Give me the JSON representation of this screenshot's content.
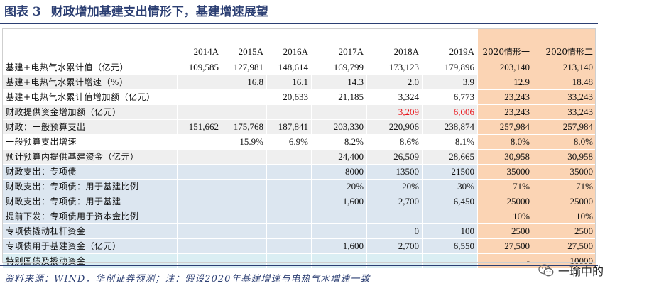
{
  "title": {
    "fig_label": "图表  3",
    "text": "财政增加基建支出情形下，基建增速展望"
  },
  "table": {
    "headers": [
      "",
      "2014A",
      "2015A",
      "2016A",
      "2017A",
      "2018A",
      "2019A",
      "2020情形一",
      "2020情形二"
    ],
    "rows": [
      {
        "label": "基建+电热气水累计值（亿元）",
        "cells": [
          "109,585",
          "127,981",
          "148,614",
          "169,799",
          "173,123",
          "179,896",
          "203,140",
          "213,140"
        ]
      },
      {
        "label": "基建+电热气水累计增速（%）",
        "cells": [
          "",
          "16.8",
          "16.1",
          "14.3",
          "2.0",
          "3.9",
          "12.9",
          "18.48"
        ]
      },
      {
        "label": "基建+电热气水累计值增加额（亿元）",
        "cells": [
          "",
          "",
          "20,633",
          "21,185",
          "3,324",
          "6,773",
          "23,243",
          "33,243"
        ]
      },
      {
        "label": "财政提供资金增加额（亿元）",
        "cells": [
          "",
          "",
          "",
          "",
          "3,209",
          "6,006",
          "23,243",
          "33,243"
        ]
      },
      {
        "label": "财政：一般预算支出",
        "cells": [
          "151,662",
          "175,768",
          "187,841",
          "203,330",
          "220,906",
          "238,874",
          "257,984",
          "257,984"
        ]
      },
      {
        "label": "一般预算支出增速",
        "cells": [
          "",
          "15.9%",
          "6.9%",
          "8.2%",
          "8.6%",
          "8.1%",
          "8.0%",
          "8.0%"
        ]
      },
      {
        "label": "预计预算内提供基建资金（亿元）",
        "cells": [
          "",
          "",
          "",
          "24,400",
          "26,509",
          "28,665",
          "30,958",
          "30,958"
        ]
      },
      {
        "label": "财政支出：专项债",
        "cells": [
          "",
          "",
          "",
          "8000",
          "13500",
          "21500",
          "35000",
          "35000"
        ]
      },
      {
        "label": "财政支出：专项债：用于基建比例",
        "cells": [
          "",
          "",
          "",
          "20%",
          "20%",
          "30%",
          "71%",
          "71%"
        ]
      },
      {
        "label": "财政支出：专项债：用于基建",
        "cells": [
          "",
          "",
          "",
          "1,600",
          "2,700",
          "6,450",
          "25000",
          "25000"
        ]
      },
      {
        "label": "提前下发：专项债用于资本金比例",
        "cells": [
          "",
          "",
          "",
          "",
          "",
          "",
          "10%",
          "10%"
        ]
      },
      {
        "label": "专项债撬动杠杆资金",
        "cells": [
          "",
          "",
          "",
          "",
          "0",
          "100",
          "2500",
          "2500"
        ]
      },
      {
        "label": "专项债用于基建资金（亿元）",
        "cells": [
          "",
          "",
          "",
          "1,600",
          "2,700",
          "6,550",
          "27,500",
          "27,500"
        ]
      },
      {
        "label": "特别国债及撬动资金",
        "cells": [
          "",
          "",
          "",
          "",
          "",
          "",
          "-",
          "10000"
        ]
      }
    ]
  },
  "source": "资料来源：WIND，华创证券预测；注：假设2020年基建增速与电热气水增速一致",
  "watermark": {
    "icon": "wechat-icon",
    "text": "一瑜中的"
  },
  "colors": {
    "title": "#2c3f73",
    "highlight_red": "#e8151b",
    "scenario_col": "#fbd4b4",
    "band_blue": "#dce6f0",
    "band_cyan": "#daeef3",
    "band_gray": "#efefef"
  }
}
